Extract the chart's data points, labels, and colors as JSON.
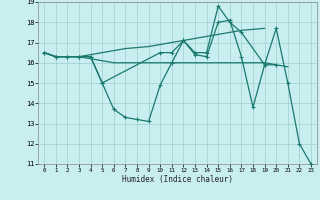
{
  "xlabel": "Humidex (Indice chaleur)",
  "bg_color": "#c8eef0",
  "grid_color": "#9ecfcc",
  "line_color": "#1a7a6e",
  "xlim": [
    -0.5,
    23.5
  ],
  "ylim": [
    11,
    19
  ],
  "xticks": [
    0,
    1,
    2,
    3,
    4,
    5,
    6,
    7,
    8,
    9,
    10,
    11,
    12,
    13,
    14,
    15,
    16,
    17,
    18,
    19,
    20,
    21,
    22,
    23
  ],
  "yticks": [
    11,
    12,
    13,
    14,
    15,
    16,
    17,
    18,
    19
  ],
  "series": [
    {
      "x": [
        0,
        1,
        2,
        3,
        4,
        5,
        6,
        7,
        8,
        9,
        10,
        11,
        12,
        13,
        14,
        15,
        16,
        17,
        18,
        19,
        20,
        21,
        22,
        23
      ],
      "y": [
        16.5,
        16.3,
        16.3,
        16.3,
        16.3,
        15.0,
        13.7,
        13.3,
        13.2,
        13.1,
        14.9,
        16.0,
        17.1,
        16.4,
        16.3,
        18.0,
        18.1,
        16.3,
        13.8,
        15.9,
        17.7,
        15.0,
        12.0,
        11.0
      ],
      "markers": true
    },
    {
      "x": [
        0,
        1,
        2,
        3,
        4,
        5,
        6,
        7,
        8,
        9,
        10,
        11,
        12,
        13,
        14,
        15,
        16,
        17,
        18,
        19,
        20,
        21
      ],
      "y": [
        16.5,
        16.3,
        16.3,
        16.3,
        16.2,
        16.1,
        16.0,
        16.0,
        16.0,
        16.0,
        16.0,
        16.0,
        16.0,
        16.0,
        16.0,
        16.0,
        16.0,
        16.0,
        16.0,
        16.0,
        15.9,
        15.8
      ],
      "markers": false
    },
    {
      "x": [
        0,
        1,
        2,
        3,
        4,
        5,
        6,
        7,
        8,
        9,
        10,
        11,
        12,
        13,
        14,
        15,
        16,
        17,
        18,
        19
      ],
      "y": [
        16.5,
        16.3,
        16.3,
        16.3,
        16.4,
        16.5,
        16.6,
        16.7,
        16.75,
        16.8,
        16.9,
        17.0,
        17.1,
        17.2,
        17.3,
        17.4,
        17.5,
        17.6,
        17.65,
        17.7
      ],
      "markers": false
    },
    {
      "x": [
        0,
        1,
        2,
        3,
        4,
        5,
        10,
        11,
        12,
        13,
        14,
        15,
        16,
        17,
        19,
        20
      ],
      "y": [
        16.5,
        16.3,
        16.3,
        16.3,
        16.3,
        15.0,
        16.5,
        16.5,
        17.1,
        16.5,
        16.5,
        18.8,
        18.0,
        17.5,
        15.9,
        15.9
      ],
      "markers": true
    }
  ]
}
